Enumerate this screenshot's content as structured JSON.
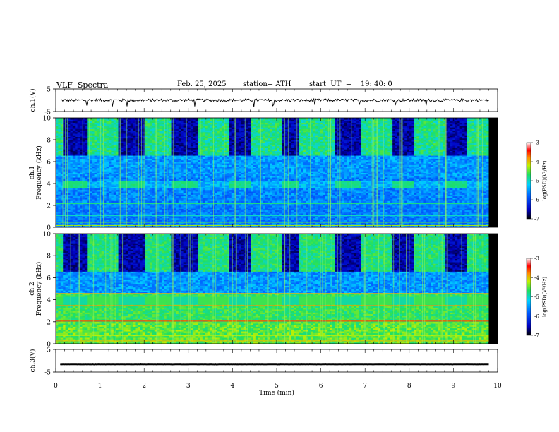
{
  "header": {
    "title": "VLF  Spectra",
    "date": "Feb. 25, 2025",
    "station": "station= ATH",
    "start": "start  UT  =    19: 40: 0"
  },
  "chart_data": [
    {
      "type": "line",
      "panel": "ch1-waveform",
      "ylabel": "ch.1(V)",
      "ylim": [
        -5,
        5
      ],
      "yticks": [
        "5",
        "-5"
      ],
      "xlim": [
        0,
        10
      ],
      "series_color": "#000000",
      "description_values": {
        "baseline": 0,
        "amplitude_approx": 0.6
      }
    },
    {
      "type": "heatmap",
      "panel": "ch1-spectrogram",
      "ylabel": "ch.1\nFrequency (kHz)",
      "ylim": [
        0,
        10
      ],
      "yticks": [
        "0",
        "2",
        "4",
        "6",
        "8",
        "10"
      ],
      "xlim": [
        0,
        10
      ],
      "tone_bursts_min": [
        [
          0.15,
          0.7
        ],
        [
          1.4,
          2.0
        ],
        [
          2.6,
          3.2
        ],
        [
          3.9,
          4.4
        ],
        [
          5.1,
          5.5
        ],
        [
          6.3,
          6.9
        ],
        [
          7.6,
          8.1
        ],
        [
          8.8,
          9.3
        ]
      ],
      "tone_band_khz": [
        3.6,
        4.3
      ],
      "colorbar": {
        "label": "log(PSD)(V²/Hz)",
        "range": [
          -7,
          -3
        ],
        "ticks": [
          "-3",
          "-4",
          "-5",
          "-6",
          "-7"
        ]
      }
    },
    {
      "type": "heatmap",
      "panel": "ch2-spectrogram",
      "ylabel": "ch.2\nFrequency (kHz)",
      "ylim": [
        0,
        10
      ],
      "yticks": [
        "0",
        "2",
        "4",
        "6",
        "8",
        "10"
      ],
      "xlim": [
        0,
        10
      ],
      "tone_bursts_min": [
        [
          0.15,
          0.7
        ],
        [
          1.4,
          2.0
        ],
        [
          2.6,
          3.2
        ],
        [
          3.9,
          4.4
        ],
        [
          5.1,
          5.5
        ],
        [
          6.3,
          6.9
        ],
        [
          7.6,
          8.1
        ],
        [
          8.8,
          9.3
        ]
      ],
      "tone_band_khz": [
        3.6,
        4.3
      ],
      "colorbar": {
        "label": "log(PSD)(V²/Hz)",
        "range": [
          -7,
          -3
        ],
        "ticks": [
          "-3",
          "-4",
          "-5",
          "-6",
          "-7"
        ]
      }
    },
    {
      "type": "line",
      "panel": "ch3-waveform",
      "ylabel": "ch.3(V)",
      "ylim": [
        -5,
        5
      ],
      "yticks": [
        "5",
        "-5"
      ],
      "xlim": [
        0,
        10
      ],
      "series_color": "#000000",
      "description_values": {
        "baseline": -1.5,
        "amplitude_approx": 0.1
      }
    }
  ],
  "xaxis": {
    "label": "Time  (min)",
    "ticks": [
      "0",
      "1",
      "2",
      "3",
      "4",
      "5",
      "6",
      "7",
      "8",
      "9",
      "10"
    ]
  }
}
